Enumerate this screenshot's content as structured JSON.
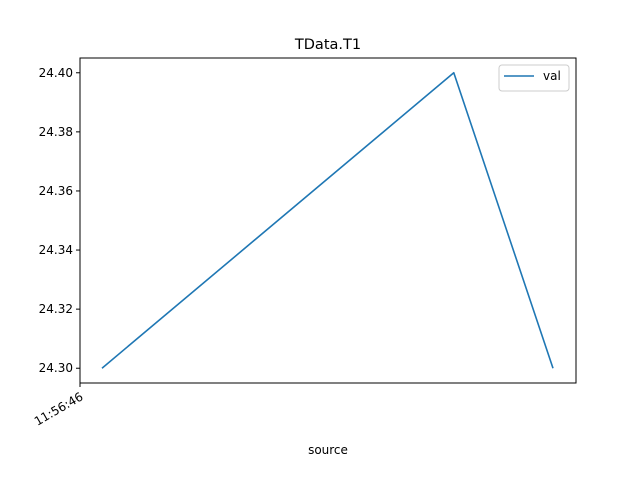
{
  "chart_data": {
    "type": "line",
    "title": "TData.T1",
    "xlabel": "source",
    "ylabel": "",
    "x_tick_labels": [
      "11:56:46"
    ],
    "y_ticks": [
      "24.30",
      "24.32",
      "24.34",
      "24.36",
      "24.38",
      "24.40"
    ],
    "ylim": [
      24.295,
      24.405
    ],
    "grid": false,
    "legend_position": "top-right",
    "series": [
      {
        "name": "val",
        "color": "#1f77b4",
        "values": [
          24.3,
          24.4,
          24.3
        ]
      }
    ]
  }
}
